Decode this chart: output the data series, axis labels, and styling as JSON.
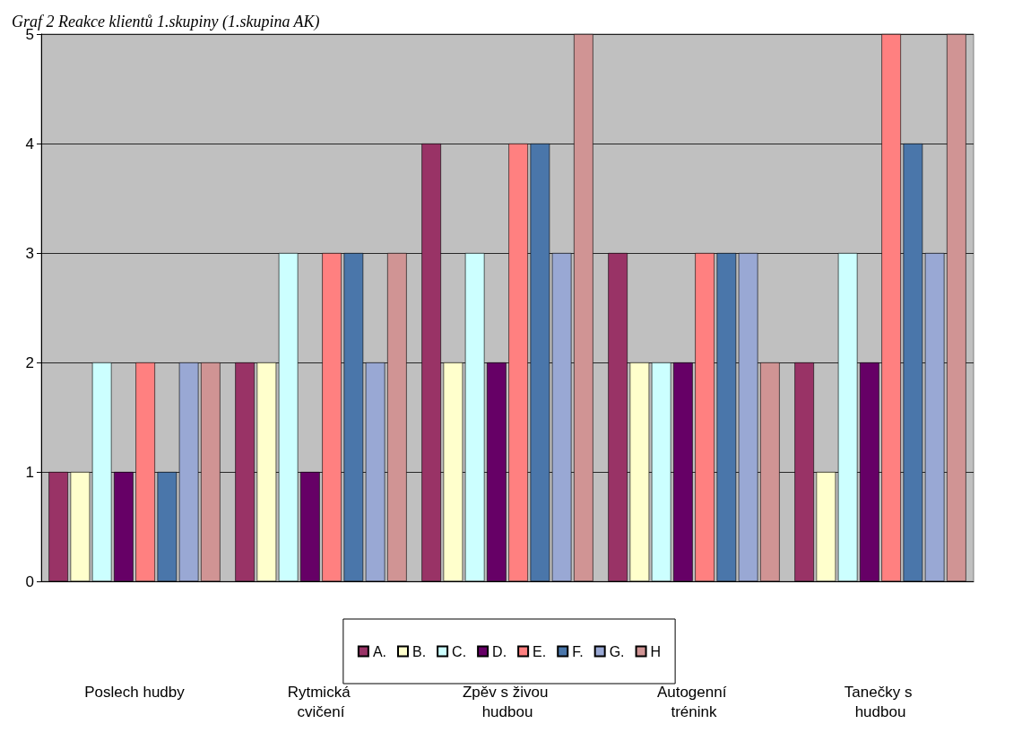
{
  "chart_data": {
    "type": "bar",
    "title": "Graf 2 Reakce klientů 1.skupiny (1.skupina AK)",
    "categories": [
      "Poslech hudby",
      "Rytmická cvičení",
      "Zpěv s živou hudbou",
      "Autogenní trénink",
      "Tanečky s hudbou"
    ],
    "series": [
      {
        "name": "A.",
        "color": "#993366",
        "values": [
          1,
          2,
          4,
          3,
          2
        ]
      },
      {
        "name": "B.",
        "color": "#ffffcc",
        "values": [
          1,
          2,
          2,
          2,
          1
        ]
      },
      {
        "name": "C.",
        "color": "#ccffff",
        "values": [
          2,
          3,
          3,
          2,
          3
        ]
      },
      {
        "name": "D.",
        "color": "#660066",
        "values": [
          1,
          1,
          2,
          2,
          2
        ]
      },
      {
        "name": "E.",
        "color": "#ff8080",
        "values": [
          2,
          3,
          4,
          3,
          5
        ]
      },
      {
        "name": "F.",
        "color": "#4a76aa",
        "values": [
          1,
          3,
          4,
          3,
          4
        ]
      },
      {
        "name": "G.",
        "color": "#99a8d4",
        "values": [
          2,
          2,
          3,
          3,
          3
        ]
      },
      {
        "name": "H",
        "color": "#d09494",
        "values": [
          2,
          3,
          5,
          2,
          5
        ]
      }
    ],
    "ylim": [
      0,
      5
    ],
    "yticks": [
      0,
      1,
      2,
      3,
      4,
      5
    ],
    "grid": "y",
    "legend": "bottom"
  }
}
